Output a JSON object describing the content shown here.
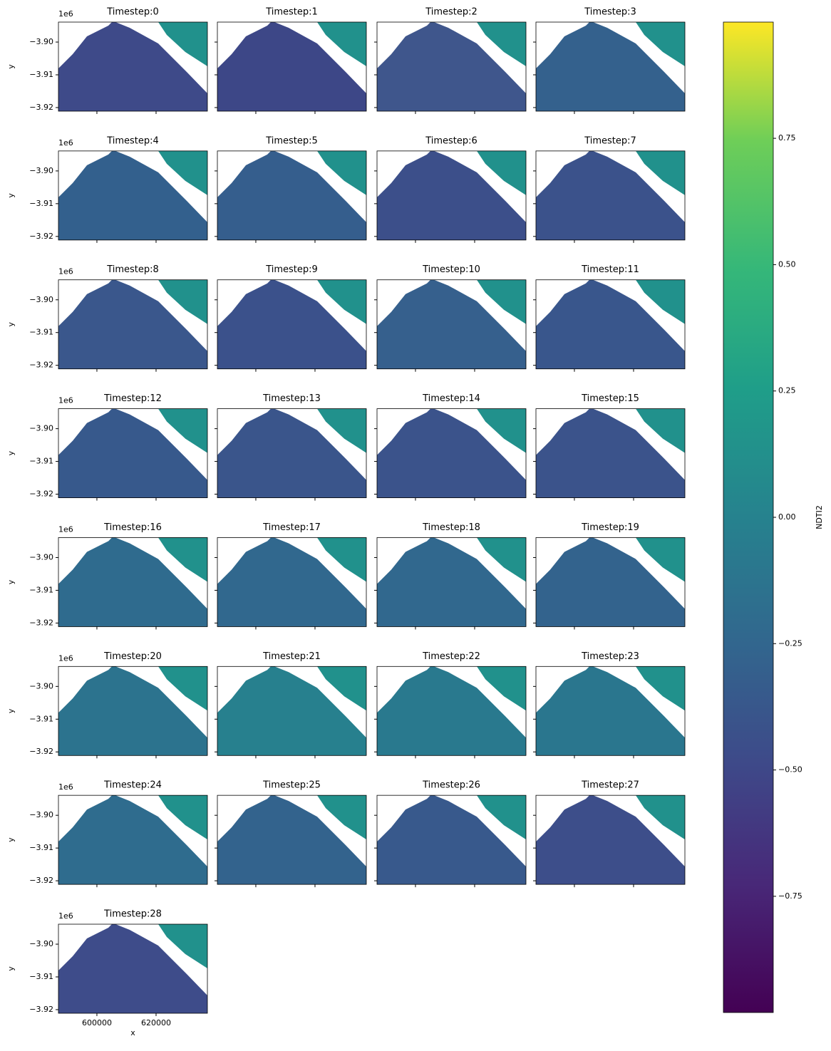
{
  "chart_data": {
    "type": "image-grid",
    "titles": [
      "Timestep:0",
      "Timestep:1",
      "Timestep:2",
      "Timestep:3",
      "Timestep:4",
      "Timestep:5",
      "Timestep:6",
      "Timestep:7",
      "Timestep:8",
      "Timestep:9",
      "Timestep:10",
      "Timestep:11",
      "Timestep:12",
      "Timestep:13",
      "Timestep:14",
      "Timestep:15",
      "Timestep:16",
      "Timestep:17",
      "Timestep:18",
      "Timestep:19",
      "Timestep:20",
      "Timestep:21",
      "Timestep:22",
      "Timestep:23",
      "Timestep:24",
      "Timestep:25",
      "Timestep:26",
      "Timestep:27",
      "Timestep:28"
    ],
    "xlabel": "x",
    "ylabel": "y",
    "y_offset": "1e6",
    "xlim": [
      587000,
      637350
    ],
    "xticks": [
      600000,
      620000
    ],
    "ylim": [
      -3921100,
      -3893900
    ],
    "yticks": [
      {
        "value": -3900000,
        "label": "−3.90"
      },
      {
        "value": -3910000,
        "label": "−3.91"
      },
      {
        "value": -3920000,
        "label": "−3.92"
      }
    ],
    "colorbar": {
      "label": "NDTI2",
      "lim": [
        -0.98,
        0.98
      ],
      "ticks": [
        {
          "value": 0.75,
          "label": "0.75"
        },
        {
          "value": 0.5,
          "label": "0.50"
        },
        {
          "value": 0.25,
          "label": "0.25"
        },
        {
          "value": 0,
          "label": "0.00"
        },
        {
          "value": -0.25,
          "label": "−0.25"
        },
        {
          "value": -0.5,
          "label": "−0.50"
        },
        {
          "value": -0.75,
          "label": "−0.75"
        }
      ]
    }
  }
}
